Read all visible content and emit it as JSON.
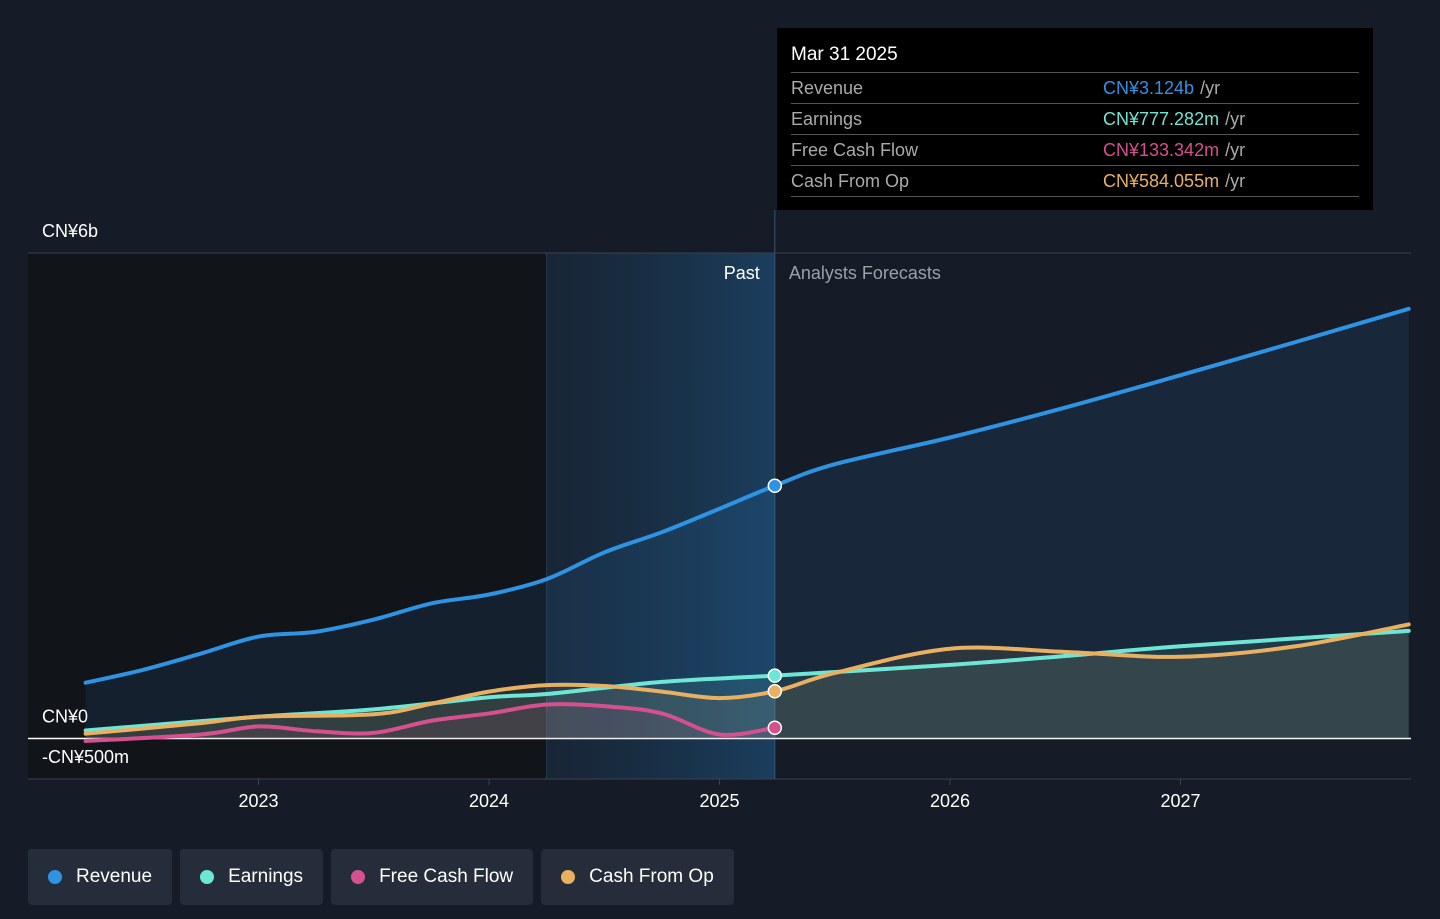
{
  "chart_data": {
    "type": "line",
    "xlim": [
      2022,
      2028
    ],
    "xticks": [
      2023,
      2024,
      2025,
      2026,
      2027
    ],
    "ylim": [
      -500000000,
      6000000000
    ],
    "yticks": [
      {
        "value": -500000000,
        "label": "-CN¥500m"
      },
      {
        "value": 0,
        "label": "CN¥0"
      },
      {
        "value": 6000000000,
        "label": "CN¥6b"
      }
    ],
    "highlight": [
      2024.25,
      2025.24
    ],
    "annotations": [
      "Past",
      "Analysts Forecasts"
    ],
    "series": [
      {
        "name": "Revenue",
        "color": "#2e93e3",
        "x": [
          2022.25,
          2022.5,
          2022.75,
          2023,
          2023.25,
          2023.5,
          2023.75,
          2024,
          2024.25,
          2024.5,
          2024.75,
          2025,
          2025.24,
          2025.5,
          2026,
          2026.5,
          2027,
          2027.5,
          2027.99
        ],
        "values": [
          690000000,
          850000000,
          1050000000,
          1260000000,
          1320000000,
          1470000000,
          1670000000,
          1780000000,
          1970000000,
          2300000000,
          2550000000,
          2840000000,
          3124000000,
          3390000000,
          3720000000,
          4090000000,
          4490000000,
          4900000000,
          5310000000
        ]
      },
      {
        "name": "Earnings",
        "color": "#6ee6d5",
        "x": [
          2022.25,
          2023,
          2023.5,
          2024,
          2024.25,
          2024.75,
          2025.24,
          2026,
          2026.5,
          2027,
          2027.99
        ],
        "values": [
          100000000,
          270000000,
          360000000,
          510000000,
          550000000,
          700000000,
          777282000,
          910000000,
          1020000000,
          1140000000,
          1330000000
        ]
      },
      {
        "name": "Free Cash Flow",
        "color": "#d4508f",
        "x": [
          2022.25,
          2022.75,
          2023,
          2023.25,
          2023.5,
          2023.75,
          2024,
          2024.25,
          2024.5,
          2024.75,
          2025,
          2025.24
        ],
        "values": [
          -30000000,
          50000000,
          150000000,
          90000000,
          70000000,
          220000000,
          310000000,
          420000000,
          400000000,
          310000000,
          50000000,
          133342000
        ]
      },
      {
        "name": "Cash From Op",
        "color": "#e8b060",
        "x": [
          2022.25,
          2022.75,
          2023,
          2023.5,
          2023.75,
          2024,
          2024.25,
          2024.5,
          2024.75,
          2025,
          2025.24,
          2025.5,
          2026,
          2026.5,
          2027,
          2027.5,
          2027.99
        ],
        "values": [
          60000000,
          190000000,
          270000000,
          300000000,
          430000000,
          580000000,
          660000000,
          650000000,
          580000000,
          500000000,
          584055000,
          810000000,
          1110000000,
          1070000000,
          1010000000,
          1140000000,
          1410000000
        ]
      }
    ],
    "tooltip": {
      "title": "Mar 31 2025",
      "unit": "/yr",
      "value_labels": [
        "CN¥3.124b",
        "CN¥777.282m",
        "CN¥133.342m",
        "CN¥584.055m"
      ]
    }
  }
}
